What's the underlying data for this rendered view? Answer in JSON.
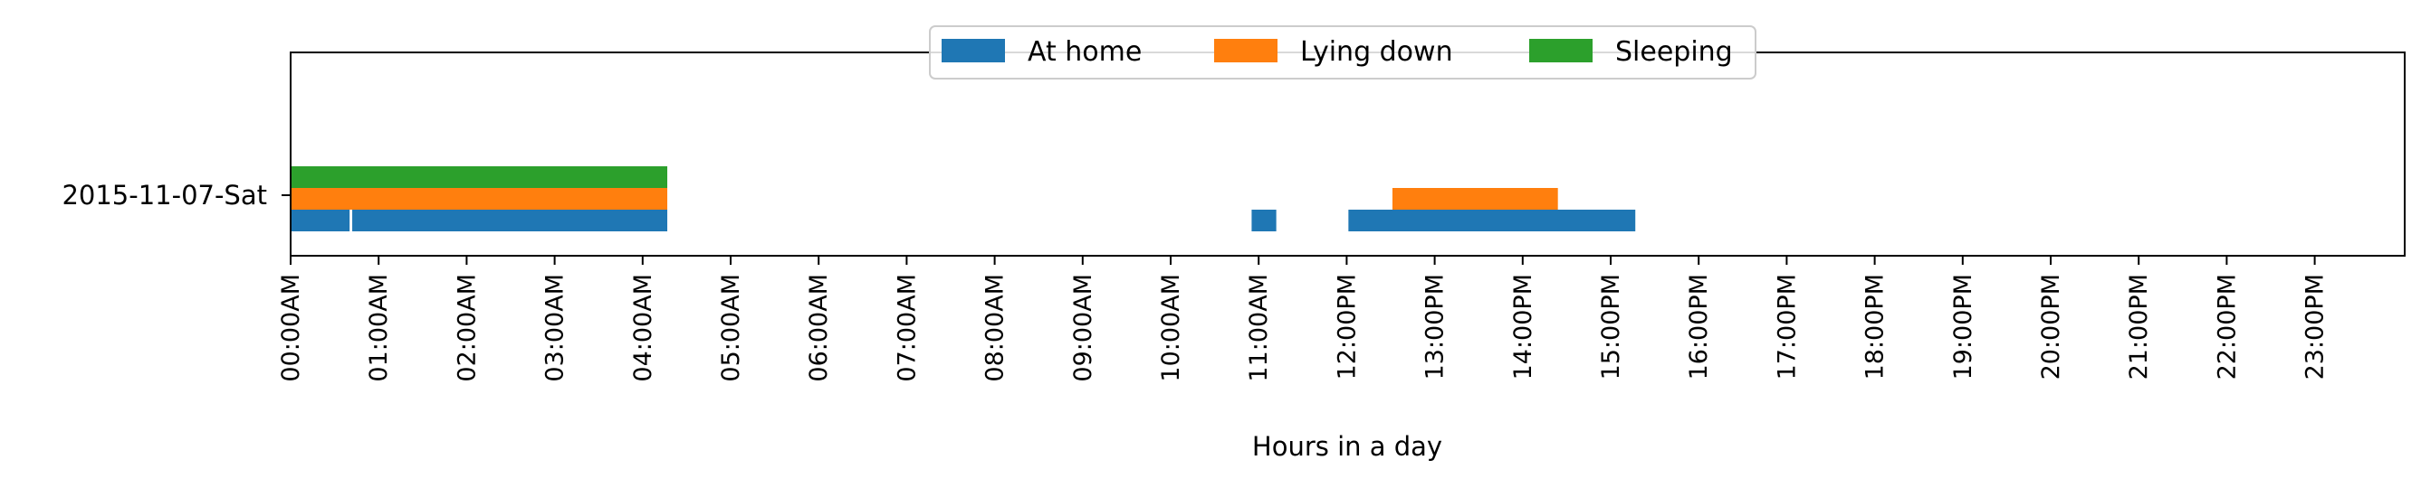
{
  "chart_data": {
    "type": "bar",
    "xlabel": "Hours in a day",
    "ylabel": "",
    "xlim": [
      0,
      24
    ],
    "grid": false,
    "legend_position": "top-center",
    "x_ticks": [
      "00:00AM",
      "01:00AM",
      "02:00AM",
      "03:00AM",
      "04:00AM",
      "05:00AM",
      "06:00AM",
      "07:00AM",
      "08:00AM",
      "09:00AM",
      "10:00AM",
      "11:00AM",
      "12:00PM",
      "13:00PM",
      "14:00PM",
      "15:00PM",
      "16:00PM",
      "17:00PM",
      "18:00PM",
      "19:00PM",
      "20:00PM",
      "21:00PM",
      "22:00PM",
      "23:00PM"
    ],
    "categories": [
      "2015-11-07-Sat"
    ],
    "series": [
      {
        "name": "At home",
        "color": "#1f77b4",
        "row_offset": -1,
        "intervals": [
          [
            0.0,
            0.67
          ],
          [
            0.7,
            4.28
          ],
          [
            10.92,
            11.2
          ],
          [
            12.02,
            15.28
          ]
        ]
      },
      {
        "name": "Lying down",
        "color": "#ff7f0e",
        "row_offset": 0,
        "intervals": [
          [
            0.0,
            4.28
          ],
          [
            12.52,
            14.4
          ]
        ]
      },
      {
        "name": "Sleeping",
        "color": "#2ca02c",
        "row_offset": 1,
        "intervals": [
          [
            0.0,
            4.28
          ]
        ]
      }
    ]
  }
}
